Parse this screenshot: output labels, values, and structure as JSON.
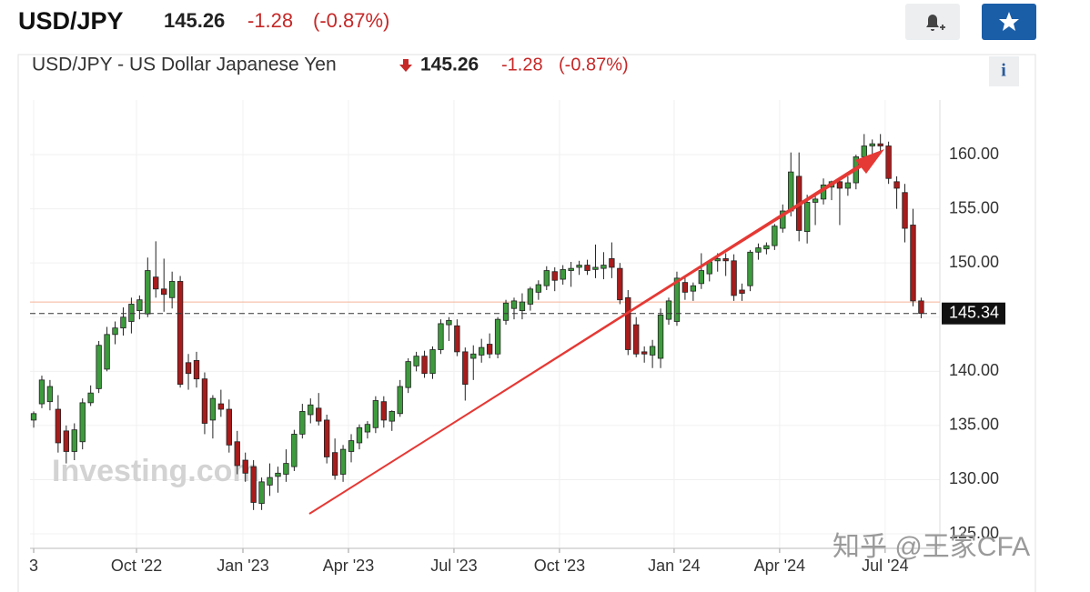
{
  "header": {
    "symbol": "USD/JPY",
    "price": "145.26",
    "change": "-1.28",
    "change_pct": "(-0.87%)"
  },
  "chart_data": {
    "type": "candlestick",
    "title": "USD/JPY - US Dollar Japanese Yen",
    "price": "145.26",
    "change": "-1.28",
    "change_pct": "(-0.87%)",
    "watermarks": [
      "Investing.com",
      "知乎 @王家CFA"
    ],
    "up_color": "#3d9b3d",
    "down_color": "#a81c1c",
    "grid": true,
    "last_price": 145.34,
    "reference_line": 146.4,
    "xlim": [
      -0.45,
      111.3
    ],
    "xticks": [
      {
        "value": 0,
        "label": "3"
      },
      {
        "value": 12.63,
        "label": "Oct '22"
      },
      {
        "value": 25.7,
        "label": "Jan '23"
      },
      {
        "value": 38.66,
        "label": "Apr '23"
      },
      {
        "value": 51.62,
        "label": "Jul '23"
      },
      {
        "value": 64.58,
        "label": "Oct '23"
      },
      {
        "value": 78.66,
        "label": "Jan '24"
      },
      {
        "value": 91.62,
        "label": "Apr '24"
      },
      {
        "value": 104.58,
        "label": "Jul '24"
      }
    ],
    "ylim": [
      123.66,
      165.04
    ],
    "yticks": [
      {
        "value": 125,
        "label": "125.00"
      },
      {
        "value": 130,
        "label": "130.00"
      },
      {
        "value": 135,
        "label": "135.00"
      },
      {
        "value": 140,
        "label": "140.00"
      },
      {
        "value": 145,
        "label": "145.00"
      },
      {
        "value": 150,
        "label": "150.00"
      },
      {
        "value": 155,
        "label": "155.00"
      },
      {
        "value": 160,
        "label": "160.00"
      }
    ],
    "candles": [
      [
        135.5,
        136.3,
        134.8,
        136.1
      ],
      [
        137,
        139.6,
        136.6,
        139.2
      ],
      [
        137.2,
        139.2,
        136.4,
        138.6
      ],
      [
        136.5,
        137.8,
        132.5,
        133.4
      ],
      [
        134.5,
        135,
        131.5,
        132.6
      ],
      [
        132.6,
        135.2,
        131.8,
        134.6
      ],
      [
        133.5,
        137.5,
        132.8,
        137.1
      ],
      [
        137.1,
        138.7,
        136.8,
        138
      ],
      [
        138.4,
        142.8,
        138,
        142.4
      ],
      [
        140.2,
        144.1,
        140,
        143.4
      ],
      [
        143.4,
        144.6,
        142.5,
        144
      ],
      [
        144,
        145.9,
        143.3,
        145
      ],
      [
        144.6,
        146.8,
        143.5,
        146.2
      ],
      [
        145.6,
        147,
        144.8,
        146.6
      ],
      [
        145.3,
        150.5,
        145,
        149.3
      ],
      [
        148.7,
        152,
        146.8,
        147.6
      ],
      [
        147.6,
        150.4,
        145.5,
        147.1
      ],
      [
        146.8,
        149.2,
        145.8,
        148.3
      ],
      [
        148.3,
        148.8,
        138.5,
        138.8
      ],
      [
        140.8,
        141.6,
        138.3,
        139.8
      ],
      [
        141,
        141.8,
        138.5,
        139.3
      ],
      [
        139.3,
        139.9,
        134.2,
        135.2
      ],
      [
        135.5,
        137.8,
        133.8,
        137.5
      ],
      [
        137,
        138.3,
        135.8,
        136.5
      ],
      [
        136.5,
        137.4,
        132.5,
        133.2
      ],
      [
        133.5,
        134.5,
        130.5,
        131.3
      ],
      [
        131.8,
        132.5,
        129.8,
        130.6
      ],
      [
        131.2,
        131.8,
        127.2,
        127.9
      ],
      [
        127.8,
        130.2,
        127.2,
        129.8
      ],
      [
        129.5,
        131.5,
        128.5,
        130.2
      ],
      [
        130.3,
        131.2,
        128.8,
        130.6
      ],
      [
        130.5,
        132.8,
        129.8,
        131.5
      ],
      [
        131.2,
        134.6,
        130.8,
        134.2
      ],
      [
        134.2,
        137,
        133.8,
        136.3
      ],
      [
        136,
        137.5,
        135.2,
        136.9
      ],
      [
        136.6,
        138,
        135,
        135.4
      ],
      [
        135.5,
        136,
        131.5,
        132.1
      ],
      [
        132.5,
        133.8,
        130,
        130.4
      ],
      [
        130.5,
        133.2,
        129.8,
        132.8
      ],
      [
        132.6,
        134.2,
        131.6,
        133.6
      ],
      [
        133.4,
        135.1,
        132.8,
        134.8
      ],
      [
        134.4,
        135.4,
        133.8,
        135.1
      ],
      [
        134.8,
        137.7,
        134.3,
        137.3
      ],
      [
        137.2,
        137.7,
        134.8,
        135.5
      ],
      [
        135.4,
        136.4,
        134.5,
        136.3
      ],
      [
        136.1,
        139.2,
        135.8,
        138.6
      ],
      [
        138.5,
        141.2,
        138,
        140.9
      ],
      [
        140.5,
        141.8,
        140,
        141.4
      ],
      [
        141.4,
        141.9,
        139.4,
        139.8
      ],
      [
        139.8,
        142.3,
        139.3,
        142
      ],
      [
        142,
        144.8,
        141.6,
        144.4
      ],
      [
        144.3,
        145,
        142.8,
        144.7
      ],
      [
        144.2,
        144.8,
        141.4,
        141.8
      ],
      [
        141.8,
        142.2,
        137.3,
        138.8
      ],
      [
        141.2,
        142.4,
        139.2,
        141.6
      ],
      [
        141.5,
        143,
        140.8,
        142.2
      ],
      [
        142.5,
        143.5,
        141.2,
        141.6
      ],
      [
        141.6,
        145,
        141.2,
        144.8
      ],
      [
        144.7,
        146.6,
        144.3,
        146.3
      ],
      [
        145.8,
        146.8,
        144.8,
        146.5
      ],
      [
        145.6,
        147.2,
        144.8,
        146.4
      ],
      [
        146.2,
        147.8,
        145.6,
        147.6
      ],
      [
        147.3,
        148.4,
        146.6,
        148
      ],
      [
        147.9,
        149.7,
        147.5,
        149.3
      ],
      [
        149.2,
        149.6,
        147.4,
        148.4
      ],
      [
        148.5,
        149.8,
        148,
        149.4
      ],
      [
        149.3,
        150.1,
        147.8,
        149.5
      ],
      [
        149.6,
        150.2,
        148.9,
        149.8
      ],
      [
        149.8,
        150.3,
        148.9,
        149.3
      ],
      [
        149.4,
        151.7,
        148.6,
        149.6
      ],
      [
        149.5,
        151,
        148.5,
        149.8
      ],
      [
        150.4,
        151.9,
        148.6,
        149.6
      ],
      [
        149.5,
        150,
        146.2,
        146.6
      ],
      [
        146.8,
        147.5,
        141.5,
        142
      ],
      [
        144.3,
        145,
        141.3,
        141.6
      ],
      [
        141.8,
        142.3,
        140.8,
        141.6
      ],
      [
        141.5,
        142.9,
        140.3,
        142.3
      ],
      [
        141.2,
        145.8,
        140.3,
        145.2
      ],
      [
        144.8,
        146.8,
        144.3,
        146.5
      ],
      [
        144.6,
        149.2,
        144.2,
        148.6
      ],
      [
        148.2,
        148.7,
        146.6,
        147.3
      ],
      [
        147.4,
        148.2,
        146.5,
        147.9
      ],
      [
        148.1,
        150.9,
        147.6,
        149.3
      ],
      [
        149,
        150.2,
        148.3,
        150.1
      ],
      [
        150.2,
        150.9,
        149.2,
        150.4
      ],
      [
        150.4,
        150.9,
        148.8,
        150.2
      ],
      [
        150.2,
        150.8,
        146.5,
        147
      ],
      [
        147.5,
        148.1,
        146.5,
        147.2
      ],
      [
        147.9,
        151.2,
        147.4,
        151
      ],
      [
        151,
        151.8,
        150.3,
        151.4
      ],
      [
        151.3,
        151.9,
        150.8,
        151.6
      ],
      [
        151.6,
        153.6,
        151.2,
        153.4
      ],
      [
        153.2,
        155.4,
        152.8,
        154.8
      ],
      [
        154.8,
        160.2,
        154.3,
        158.4
      ],
      [
        158,
        160.2,
        152,
        153
      ],
      [
        152.9,
        156.3,
        151.8,
        155.6
      ],
      [
        155.6,
        156.3,
        153.5,
        155.9
      ],
      [
        155.9,
        157.8,
        155.4,
        157.2
      ],
      [
        157,
        157.6,
        155.8,
        157.5
      ],
      [
        157.5,
        157.8,
        153.5,
        156.9
      ],
      [
        156.9,
        158,
        156.2,
        157.4
      ],
      [
        157.4,
        160,
        156.8,
        159.8
      ],
      [
        159.8,
        161.9,
        159.3,
        160.8
      ],
      [
        160.8,
        161.4,
        159.6,
        161
      ],
      [
        161,
        161.9,
        160.2,
        160.8
      ],
      [
        160.8,
        161.2,
        157.3,
        157.8
      ],
      [
        157.5,
        158,
        155,
        156.9
      ],
      [
        156.5,
        157.3,
        151.9,
        153.2
      ],
      [
        153.5,
        155,
        146,
        146.5
      ],
      [
        146.5,
        146.8,
        144.9,
        145.34
      ]
    ]
  }
}
